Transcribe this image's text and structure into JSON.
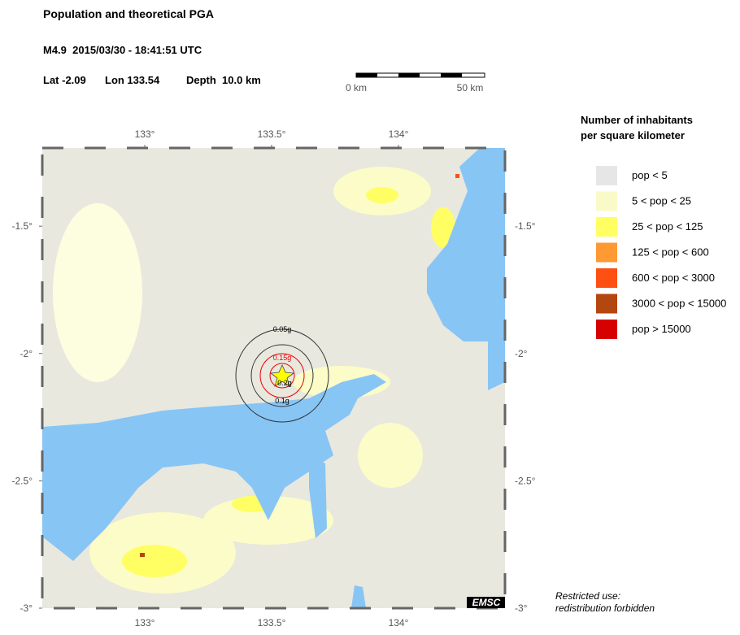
{
  "header": {
    "title": "Population and theoretical PGA",
    "event": "M4.9  2015/03/30 - 18:41:51 UTC",
    "lat": "Lat -2.09",
    "lon": "Lon 133.54",
    "depth": "Depth  10.0 km"
  },
  "scale_bar": {
    "start": "0 km",
    "end": "50 km"
  },
  "map": {
    "xlim": [
      132.596,
      134.42
    ],
    "ylim": [
      -3,
      -1.193
    ],
    "lon_ticks": [
      {
        "value": 133,
        "label": "133°"
      },
      {
        "value": 133.5,
        "label": "133.5°"
      },
      {
        "value": 134,
        "label": "134°"
      }
    ],
    "lat_ticks": [
      {
        "value": -1.5,
        "label": "-1.5°"
      },
      {
        "value": -2,
        "label": "-2°"
      },
      {
        "value": -2.5,
        "label": "-2.5°"
      },
      {
        "value": -3,
        "label": "-3°"
      }
    ],
    "pga_labels": [
      "0.05g",
      "0.15g",
      "0.2g",
      "0.1g"
    ],
    "logo": "EMSC"
  },
  "legend": {
    "title": [
      "Number of inhabitants",
      "per square kilometer"
    ],
    "entries": [
      {
        "label": "pop < 5",
        "color": "#e6e6e6"
      },
      {
        "label": "5 < pop < 25",
        "color": "#fafac8"
      },
      {
        "label": "25 < pop < 125",
        "color": "#ffff64"
      },
      {
        "label": "125 < pop < 600",
        "color": "#ff9933"
      },
      {
        "label": "600 < pop < 3000",
        "color": "#ff5014"
      },
      {
        "label": "3000 < pop < 15000",
        "color": "#b4460f"
      },
      {
        "label": "pop > 15000",
        "color": "#d70000"
      }
    ]
  },
  "note": [
    "Restricted use:",
    "redistribution forbidden"
  ]
}
